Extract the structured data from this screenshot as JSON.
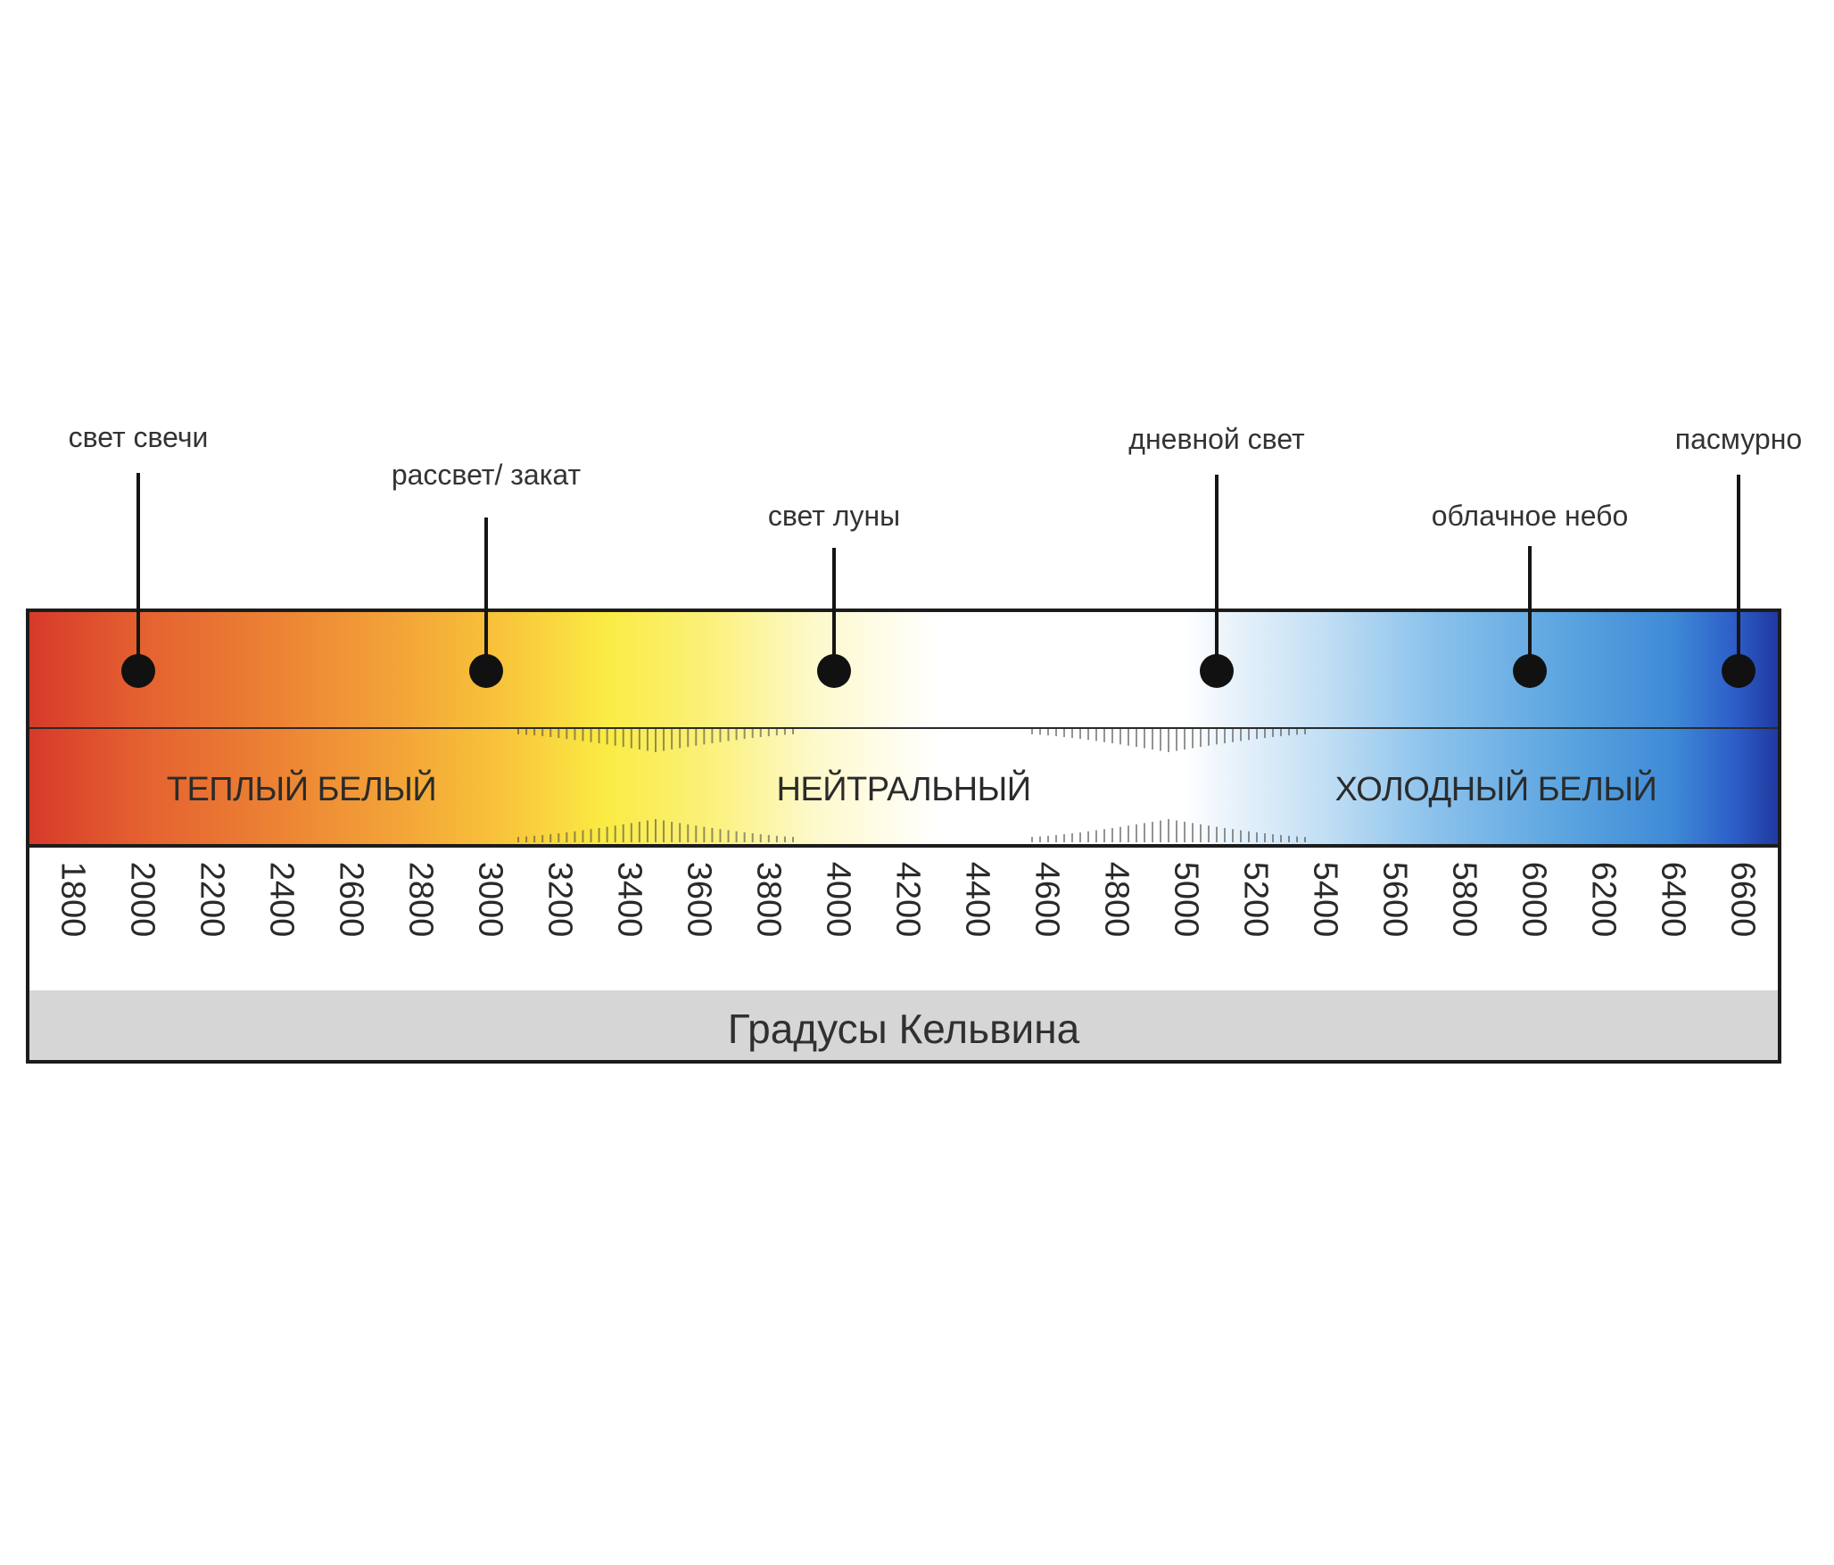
{
  "markers": [
    {
      "label": "свет свечи",
      "kelvin": 2000
    },
    {
      "label": "рассвет/ закат",
      "kelvin": 3000
    },
    {
      "label": "свет луны",
      "kelvin": 4000
    },
    {
      "label": "дневной свет",
      "kelvin": 5100
    },
    {
      "label": "облачное небо",
      "kelvin": 6000
    },
    {
      "label": "пасмурно",
      "kelvin": 6600
    }
  ],
  "zones": [
    {
      "label": "ТЕПЛЫЙ БЕЛЫЙ"
    },
    {
      "label": "НЕЙТРАЛЬНЫЙ"
    },
    {
      "label": "ХОЛОДНЫЙ БЕЛЫЙ"
    }
  ],
  "scale": {
    "values": [
      "1800",
      "2000",
      "2200",
      "2400",
      "2600",
      "2800",
      "3000",
      "3200",
      "3400",
      "3600",
      "3800",
      "4000",
      "4200",
      "4400",
      "4600",
      "4800",
      "5000",
      "5200",
      "5400",
      "5600",
      "5800",
      "6000",
      "6200",
      "6400",
      "6600"
    ],
    "unit_label": "Градусы Кельвина"
  },
  "colors": {
    "warm": "#d63a2a",
    "neutral": "#ffffff",
    "cold": "#1f3aa0",
    "marker_dot": "#111111",
    "unit_band": "#d6d6d6"
  }
}
